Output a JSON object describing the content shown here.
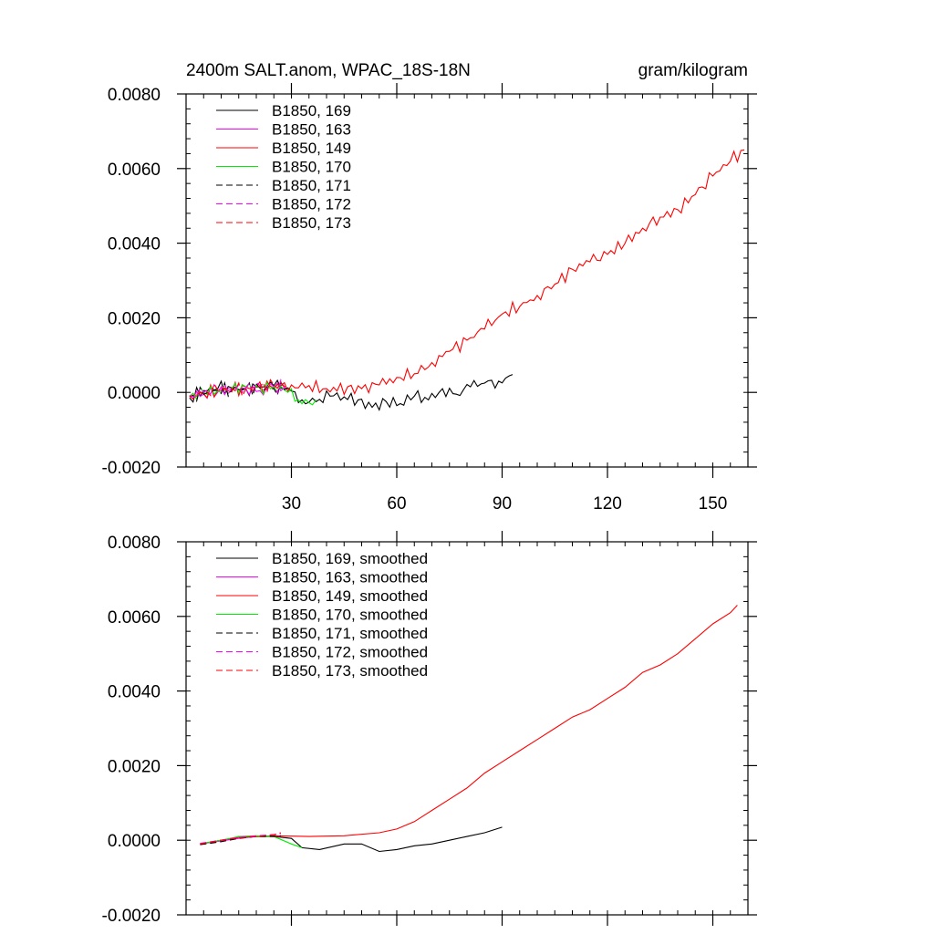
{
  "chart_data": [
    {
      "type": "line",
      "title": "2400m SALT.anom, WPAC_18S-18N",
      "units": "gram/kilogram",
      "xlabel": "",
      "ylabel": "",
      "xlim": [
        0,
        160
      ],
      "ylim": [
        -0.002,
        0.008
      ],
      "xticks": [
        30,
        60,
        90,
        120,
        150
      ],
      "xtick_labels": [
        "30",
        "60",
        "90",
        "120",
        "150"
      ],
      "yticks": [
        -0.002,
        0.0,
        0.002,
        0.004,
        0.006,
        0.008
      ],
      "ytick_labels": [
        "-0.0020",
        "0.0000",
        "0.0020",
        "0.0040",
        "0.0060",
        "0.0080"
      ],
      "legend_position": "top-left",
      "series": [
        {
          "name": "B1850, 169",
          "color": "#000000",
          "dash": "solid",
          "x": [
            1,
            5,
            9,
            13,
            17,
            21,
            25,
            29,
            33,
            37,
            41,
            45,
            49,
            53,
            57,
            61,
            65,
            69,
            73,
            77,
            81,
            85,
            89,
            93
          ],
          "y": [
            -0.00015,
            5e-05,
            0.0001,
            0.00012,
            0.0001,
            0.00015,
            0.00018,
            0.00012,
            -0.0002,
            -0.00025,
            -0.0001,
            -0.00012,
            -0.0002,
            -0.0004,
            -0.00025,
            -0.0003,
            -0.0001,
            -0.0002,
            0.0001,
            -5e-05,
            0.00015,
            0.00025,
            0.0003,
            0.00048
          ]
        },
        {
          "name": "B1850, 163",
          "color": "#ff00ff",
          "dash": "solid",
          "x": [
            1,
            5,
            9,
            13,
            17,
            21,
            25,
            29
          ],
          "y": [
            -0.0001,
            -5e-05,
            0.0,
            8e-05,
            0.0001,
            5e-05,
            0.00012,
            8e-05
          ]
        },
        {
          "name": "B1850, 149",
          "color": "#ff0000",
          "dash": "solid",
          "x": [
            1,
            10,
            20,
            30,
            40,
            50,
            55,
            60,
            65,
            70,
            75,
            80,
            85,
            90,
            95,
            100,
            105,
            110,
            115,
            120,
            125,
            130,
            135,
            140,
            145,
            150,
            155,
            159
          ],
          "y": [
            -0.0001,
            5e-05,
            0.00015,
            0.0002,
            0.0001,
            0.0001,
            0.0002,
            0.0004,
            0.0005,
            0.0008,
            0.0011,
            0.0014,
            0.0017,
            0.0021,
            0.0023,
            0.0026,
            0.0029,
            0.0033,
            0.0035,
            0.0037,
            0.004,
            0.0044,
            0.0047,
            0.0049,
            0.0053,
            0.0058,
            0.0062,
            0.0065
          ]
        },
        {
          "name": "B1850, 170",
          "color": "#00ee00",
          "dash": "solid",
          "x": [
            1,
            5,
            9,
            13,
            17,
            21,
            25,
            29,
            33,
            37
          ],
          "y": [
            -0.0001,
            0.0,
            5e-05,
            0.0001,
            0.00015,
            0.00012,
            0.00015,
            0.0,
            -0.0003,
            -0.0002
          ]
        },
        {
          "name": "B1850, 171",
          "color": "#000000",
          "dash": "dashed",
          "x": [
            1,
            5,
            9,
            13,
            17,
            21,
            25,
            29
          ],
          "y": [
            -0.00012,
            -5e-05,
            5e-05,
            8e-05,
            0.0001,
            0.00012,
            0.0001,
            0.00012
          ]
        },
        {
          "name": "B1850, 172",
          "color": "#ff00ff",
          "dash": "dashed",
          "x": [
            1,
            5,
            9,
            13,
            17,
            21,
            25,
            29
          ],
          "y": [
            -8e-05,
            0.0,
            8e-05,
            0.0001,
            0.00012,
            0.00018,
            0.00015,
            0.00018
          ]
        },
        {
          "name": "B1850, 173",
          "color": "#ff0000",
          "dash": "dashed",
          "x": [
            1,
            5,
            9,
            13,
            17,
            21,
            25,
            29
          ],
          "y": [
            -0.0001,
            0.0,
            5e-05,
            0.0001,
            8e-05,
            0.00015,
            0.0002,
            0.00018
          ]
        }
      ]
    },
    {
      "type": "line",
      "title": "",
      "xlabel": "",
      "ylabel": "",
      "xlim": [
        0,
        160
      ],
      "ylim": [
        -0.002,
        0.008
      ],
      "xticks": [
        30,
        60,
        90,
        120,
        150
      ],
      "yticks": [
        -0.002,
        0.0,
        0.002,
        0.004,
        0.006,
        0.008
      ],
      "ytick_labels": [
        "-0.0020",
        "0.0000",
        "0.0020",
        "0.0040",
        "0.0060",
        "0.0080"
      ],
      "legend_position": "top-left",
      "series": [
        {
          "name": "B1850, 169, smoothed",
          "color": "#000000",
          "dash": "solid",
          "x": [
            4,
            10,
            15,
            20,
            25,
            30,
            33,
            38,
            45,
            50,
            55,
            60,
            65,
            70,
            75,
            80,
            85,
            90
          ],
          "y": [
            -0.0001,
            0.0,
            8e-05,
            0.0001,
            0.0001,
            5e-05,
            -0.0002,
            -0.00025,
            -0.0001,
            -0.0001,
            -0.0003,
            -0.00025,
            -0.00015,
            -0.0001,
            0.0,
            0.0001,
            0.0002,
            0.00035
          ]
        },
        {
          "name": "B1850, 163, smoothed",
          "color": "#ff00ff",
          "dash": "solid",
          "x": [
            4,
            10,
            15,
            20,
            25,
            27
          ],
          "y": [
            -0.0001,
            -2e-05,
            5e-05,
            0.0001,
            0.00012,
            0.0001
          ]
        },
        {
          "name": "B1850, 149, smoothed",
          "color": "#ff0000",
          "dash": "solid",
          "x": [
            4,
            15,
            25,
            35,
            45,
            55,
            60,
            65,
            70,
            75,
            80,
            85,
            90,
            95,
            100,
            105,
            110,
            115,
            120,
            125,
            130,
            135,
            140,
            145,
            150,
            155,
            157
          ],
          "y": [
            -0.0001,
            8e-05,
            0.00012,
            0.0001,
            0.00012,
            0.0002,
            0.0003,
            0.0005,
            0.0008,
            0.0011,
            0.0014,
            0.0018,
            0.0021,
            0.0024,
            0.0027,
            0.003,
            0.0033,
            0.0035,
            0.0038,
            0.0041,
            0.0045,
            0.0047,
            0.005,
            0.0054,
            0.0058,
            0.0061,
            0.0063
          ]
        },
        {
          "name": "B1850, 170, smoothed",
          "color": "#00ee00",
          "dash": "solid",
          "x": [
            4,
            10,
            15,
            20,
            25,
            30,
            33
          ],
          "y": [
            -0.0001,
            0.0,
            0.0001,
            0.00012,
            0.0001,
            -0.0001,
            -0.0002
          ]
        },
        {
          "name": "B1850, 171, smoothed",
          "color": "#000000",
          "dash": "dashed",
          "x": [
            4,
            10,
            15,
            20,
            25,
            27
          ],
          "y": [
            -0.00012,
            -4e-05,
            5e-05,
            0.0001,
            0.0001,
            0.00012
          ]
        },
        {
          "name": "B1850, 172, smoothed",
          "color": "#ff00ff",
          "dash": "dashed",
          "x": [
            4,
            10,
            15,
            20,
            25,
            27
          ],
          "y": [
            -8e-05,
            0.0,
            8e-05,
            0.00012,
            0.00015,
            0.00018
          ]
        },
        {
          "name": "B1850, 173, smoothed",
          "color": "#ff0000",
          "dash": "dashed",
          "x": [
            4,
            10,
            15,
            20,
            25,
            27
          ],
          "y": [
            -0.0001,
            0.0,
            6e-05,
            0.0001,
            0.00015,
            0.0002
          ]
        }
      ]
    }
  ]
}
